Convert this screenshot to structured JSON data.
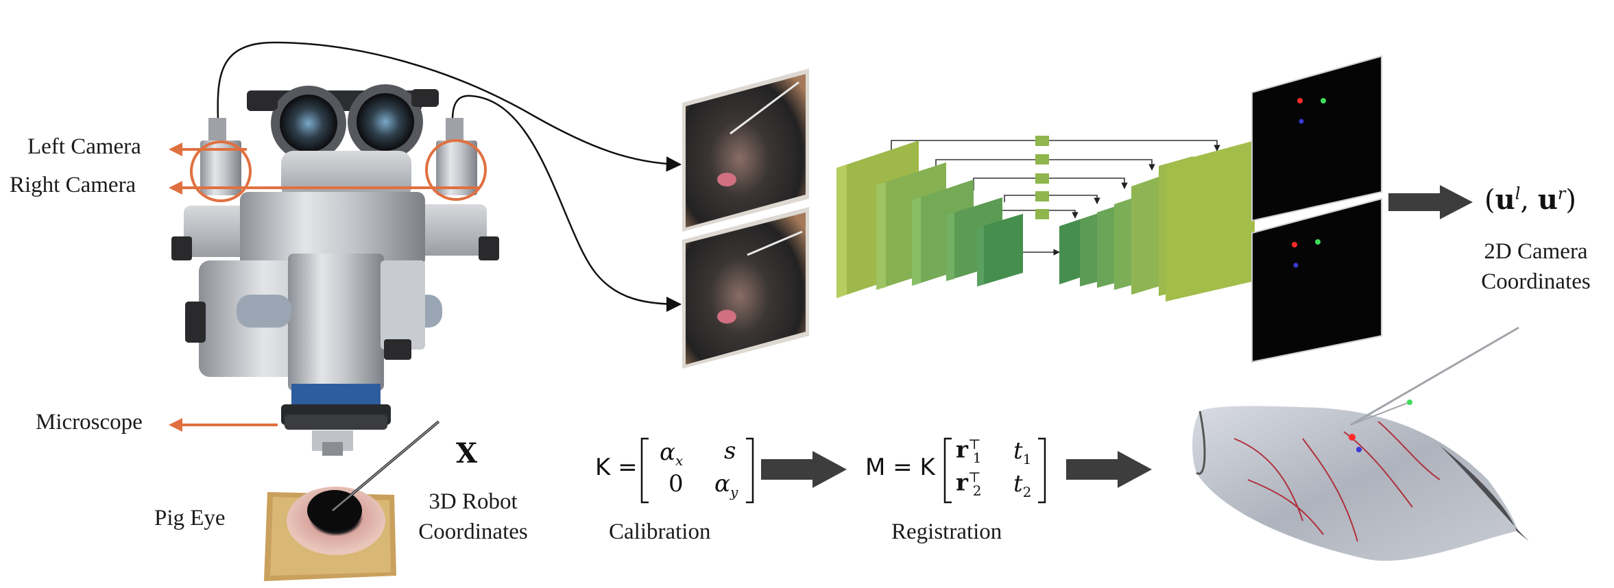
{
  "labels": {
    "left_camera": "Left Camera",
    "right_camera": "Right Camera",
    "microscope": "Microscope",
    "pig_eye": "Pig Eye",
    "robot_coords_line1": "3D Robot",
    "robot_coords_line2": "Coordinates",
    "robot_symbol": "X",
    "camera_coords_line1": "2D Camera",
    "camera_coords_line2": "Coordinates",
    "calibration": "Calibration",
    "registration": "Registration"
  },
  "math": {
    "camera_coord_tuple_open": "(",
    "camera_coord_u": "u",
    "camera_coord_l": "l",
    "camera_coord_sep": ", ",
    "camera_coord_r": "r",
    "camera_coord_tuple_close": ")",
    "K_lhs": "K =",
    "K_a11": "α",
    "K_a11_sub": "x",
    "K_a12": "s",
    "K_a21": "0",
    "K_a22": "α",
    "K_a22_sub": "y",
    "M_lhs": "M = K",
    "M_r1": "r",
    "M_r1_sub": "1",
    "M_r2": "r",
    "M_r2_sub": "2",
    "M_T": "⊤",
    "M_t1": "t",
    "M_t1_sub": "1",
    "M_t2": "t",
    "M_t2_sub": "2"
  },
  "colors": {
    "arrow_orange": "#e07040",
    "network_light": "#a3bd4b",
    "network_mid": "#6aa558",
    "network_dark": "#3b8a4f",
    "flow_arrow": "#3d3d3d",
    "heatmap_bg": "#050505",
    "dot_red": "#ff2a2a",
    "dot_green": "#3ddc5a",
    "dot_blue": "#3a3ad8"
  },
  "icons": [
    "microscope-illustration",
    "camera-frame-top",
    "camera-frame-bottom",
    "unet-network",
    "heatmap-top",
    "heatmap-bottom",
    "eye-3d-render",
    "pig-eye-photo"
  ]
}
